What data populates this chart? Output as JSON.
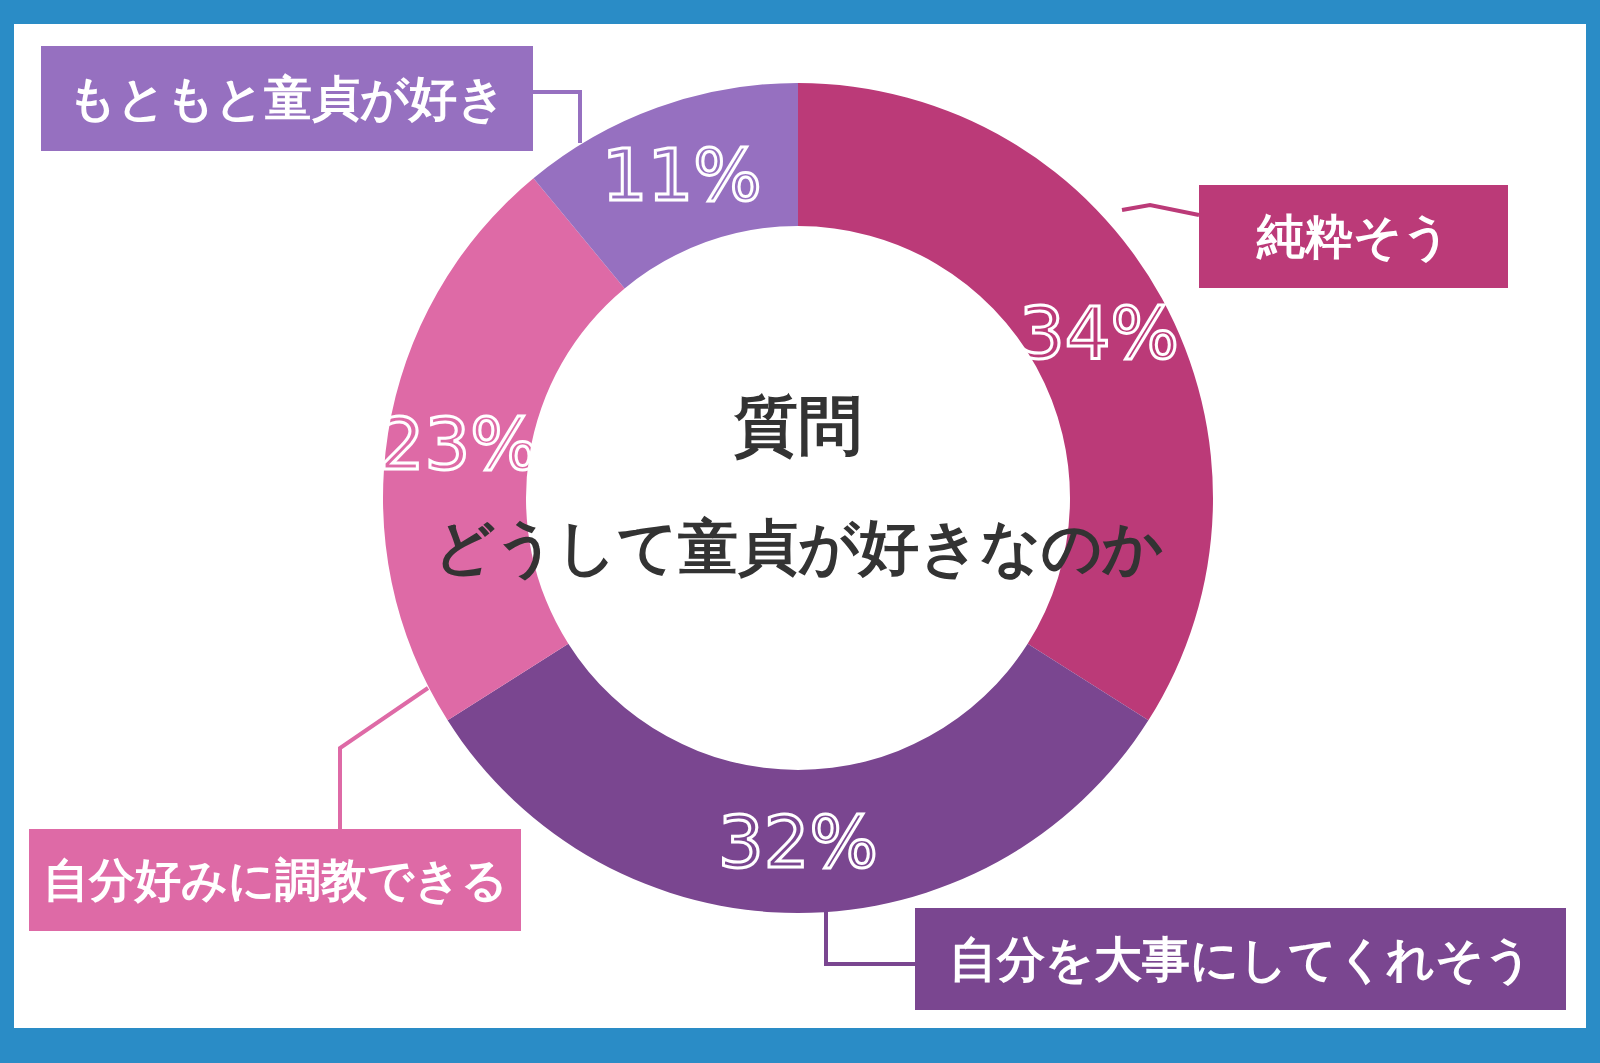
{
  "chart_data": {
    "type": "donut",
    "title": "質問",
    "subtitle": "どうして童貞が好きなのか",
    "categories": [
      "純粋そう",
      "自分を大事にしてくれそう",
      "自分好みに調教できる",
      "もともと童貞が好き"
    ],
    "values": [
      34,
      32,
      23,
      11
    ],
    "colors": [
      "#bb3a78",
      "#7a4690",
      "#de6aa6",
      "#9670c0"
    ],
    "value_labels": [
      "34%",
      "32%",
      "23%",
      "11%"
    ]
  }
}
